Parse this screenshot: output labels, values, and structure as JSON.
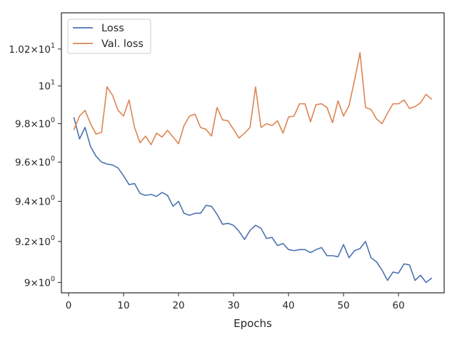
{
  "chart_data": {
    "type": "line",
    "xlabel": "Epochs",
    "ylabel": "",
    "y_scale": "log",
    "xlim": [
      -1.3,
      68.3
    ],
    "ylim": [
      8.95,
      10.4
    ],
    "grid": false,
    "legend_position": "top-left",
    "x_ticks": [
      0,
      10,
      20,
      30,
      40,
      50,
      60
    ],
    "x_tick_labels": [
      "0",
      "10",
      "20",
      "30",
      "40",
      "50",
      "60"
    ],
    "y_ticks": [
      {
        "value": 9.0,
        "mantissa": "9",
        "base": "10",
        "exp": "0"
      },
      {
        "value": 9.2,
        "mantissa": "9.2",
        "base": "10",
        "exp": "0"
      },
      {
        "value": 9.4,
        "mantissa": "9.4",
        "base": "10",
        "exp": "0"
      },
      {
        "value": 9.6,
        "mantissa": "9.6",
        "base": "10",
        "exp": "0"
      },
      {
        "value": 9.8,
        "mantissa": "9.8",
        "base": "10",
        "exp": "0"
      },
      {
        "value": 10.0,
        "mantissa": "",
        "base": "10",
        "exp": "1"
      },
      {
        "value": 10.2,
        "mantissa": "1.02",
        "base": "10",
        "exp": "1"
      }
    ],
    "x": [
      1,
      2,
      3,
      4,
      5,
      6,
      7,
      8,
      9,
      10,
      11,
      12,
      13,
      14,
      15,
      16,
      17,
      18,
      19,
      20,
      21,
      22,
      23,
      24,
      25,
      26,
      27,
      28,
      29,
      30,
      31,
      32,
      33,
      34,
      35,
      36,
      37,
      38,
      39,
      40,
      41,
      42,
      43,
      44,
      45,
      46,
      47,
      48,
      49,
      50,
      51,
      52,
      53,
      54,
      55,
      56,
      57,
      58,
      59,
      60,
      61,
      62,
      63,
      64,
      65,
      66
    ],
    "series": [
      {
        "name": "Loss",
        "color": "#4c72b0",
        "values": [
          9.83,
          9.72,
          9.78,
          9.68,
          9.63,
          9.6,
          9.59,
          9.585,
          9.57,
          9.53,
          9.485,
          9.49,
          9.44,
          9.43,
          9.435,
          9.425,
          9.445,
          9.43,
          9.375,
          9.4,
          9.34,
          9.33,
          9.34,
          9.34,
          9.38,
          9.375,
          9.335,
          9.285,
          9.29,
          9.28,
          9.25,
          9.21,
          9.255,
          9.28,
          9.265,
          9.215,
          9.22,
          9.18,
          9.19,
          9.16,
          9.155,
          9.16,
          9.16,
          9.145,
          9.16,
          9.17,
          9.13,
          9.13,
          9.125,
          9.185,
          9.12,
          9.155,
          9.165,
          9.2,
          9.12,
          9.1,
          9.06,
          9.01,
          9.05,
          9.045,
          9.09,
          9.085,
          9.01,
          9.035,
          9.0,
          9.02
        ]
      },
      {
        "name": "Val. loss",
        "color": "#dd8452",
        "values": [
          9.77,
          9.84,
          9.87,
          9.8,
          9.745,
          9.755,
          9.995,
          9.95,
          9.87,
          9.84,
          9.925,
          9.78,
          9.7,
          9.735,
          9.69,
          9.75,
          9.73,
          9.765,
          9.73,
          9.695,
          9.79,
          9.84,
          9.85,
          9.78,
          9.77,
          9.735,
          9.885,
          9.82,
          9.815,
          9.77,
          9.725,
          9.75,
          9.78,
          9.995,
          9.78,
          9.8,
          9.79,
          9.815,
          9.75,
          9.835,
          9.84,
          9.905,
          9.905,
          9.81,
          9.9,
          9.905,
          9.885,
          9.805,
          9.92,
          9.84,
          9.895,
          10.03,
          10.18,
          9.885,
          9.875,
          9.825,
          9.8,
          9.855,
          9.905,
          9.905,
          9.925,
          9.88,
          9.89,
          9.91,
          9.955,
          9.93
        ]
      }
    ]
  }
}
